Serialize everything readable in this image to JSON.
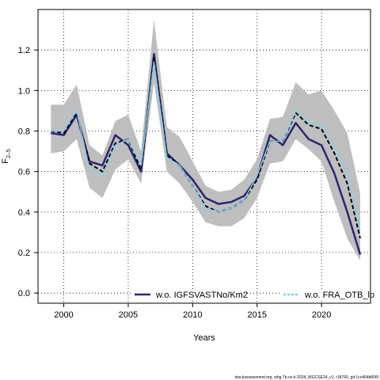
{
  "chart_data": {
    "type": "line",
    "xlabel": "Years",
    "ylabel_main": "F",
    "ylabel_sub": "2–5",
    "xlim": [
      1998,
      2023.8
    ],
    "ylim": [
      -0.05,
      1.4
    ],
    "x_ticks": [
      2000,
      2005,
      2010,
      2015,
      2020
    ],
    "x_tick_labels": [
      "2000",
      "2005",
      "2010",
      "2015",
      "2020"
    ],
    "y_ticks": [
      0.0,
      0.2,
      0.4,
      0.6,
      0.8,
      1.0,
      1.2
    ],
    "y_tick_labels": [
      "0.0",
      "0.2",
      "0.4",
      "0.6",
      "0.8",
      "1.0",
      "1.2"
    ],
    "grid": true,
    "x": [
      1999,
      2000,
      2001,
      2002,
      2003,
      2004,
      2005,
      2006,
      2007,
      2008,
      2009,
      2010,
      2011,
      2012,
      2013,
      2014,
      2015,
      2016,
      2017,
      2018,
      2019,
      2020,
      2021,
      2022,
      2023
    ],
    "band": {
      "color": "#bebebe",
      "upper": [
        0.93,
        0.93,
        1.03,
        0.73,
        0.68,
        0.85,
        0.88,
        0.7,
        1.35,
        0.82,
        0.77,
        0.65,
        0.53,
        0.5,
        0.51,
        0.56,
        0.66,
        0.86,
        0.87,
        1.04,
        0.98,
        1.0,
        0.9,
        0.79,
        0.49
      ],
      "lower": [
        0.69,
        0.7,
        0.76,
        0.52,
        0.47,
        0.61,
        0.66,
        0.54,
        1.04,
        0.6,
        0.54,
        0.45,
        0.35,
        0.33,
        0.33,
        0.37,
        0.47,
        0.64,
        0.65,
        0.76,
        0.71,
        0.65,
        0.45,
        0.27,
        0.16
      ]
    },
    "series": [
      {
        "name": "w.o. IGFSVASTNo/Km2",
        "color": "#2e2472",
        "width": 2.5,
        "dash": "",
        "values": [
          0.79,
          0.78,
          0.88,
          0.65,
          0.63,
          0.78,
          0.73,
          0.6,
          1.18,
          0.69,
          0.63,
          0.56,
          0.47,
          0.44,
          0.45,
          0.48,
          0.57,
          0.78,
          0.73,
          0.84,
          0.76,
          0.73,
          0.59,
          0.4,
          0.19
        ]
      },
      {
        "name": "",
        "color": "#000000",
        "width": 2,
        "dash": "5,3",
        "values": [
          0.8,
          0.79,
          0.89,
          0.64,
          0.6,
          0.74,
          0.76,
          0.61,
          1.16,
          0.68,
          0.63,
          0.53,
          0.43,
          0.4,
          0.42,
          0.46,
          0.56,
          0.75,
          0.75,
          0.89,
          0.83,
          0.81,
          0.69,
          0.54,
          0.27
        ]
      },
      {
        "name": "",
        "color": "#7fd2ee",
        "width": 1.4,
        "dash": "",
        "values": [
          0.8,
          0.8,
          0.9,
          0.61,
          0.58,
          0.73,
          0.76,
          0.63,
          1.14,
          0.67,
          0.63,
          0.53,
          0.42,
          0.4,
          0.42,
          0.46,
          0.58,
          0.75,
          0.75,
          0.9,
          0.84,
          0.83,
          0.72,
          0.6,
          0.31
        ]
      }
    ],
    "legend": [
      {
        "label": "w.o. IGFSVASTNo/Km2",
        "color": "#2e2472",
        "dash": ""
      },
      {
        "label": "w.o. FRA_OTB_lp",
        "color": "#7fd2ee",
        "dash": "3,2"
      }
    ]
  },
  "watermark": "stockassessment.org, whg.7b-ce-k-2024_WGCSE24_v1, r18760, git:1cc464b806f"
}
